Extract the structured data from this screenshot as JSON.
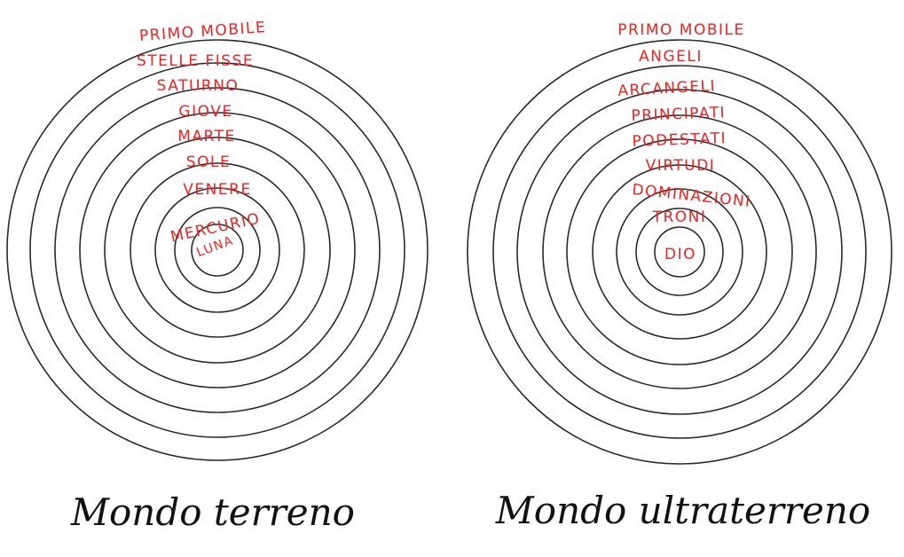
{
  "colors": {
    "ring_stroke": "#2a2a2a",
    "label_color": "#ee2222",
    "caption_color": "#111111"
  },
  "diagrams": [
    {
      "caption": "Mondo terreno",
      "labels": [
        "PRIMO MOBILE",
        "STELLE FISSE",
        "SATURNO",
        "GIOVE",
        "MARTE",
        "SOLE",
        "VENERE",
        "MERCURIO",
        "LUNA"
      ]
    },
    {
      "caption": "Mondo ultraterreno",
      "labels": [
        "PRIMO MOBILE",
        "ANGELI",
        "ARCANGELI",
        "PRINCIPATI",
        "PODESTATI",
        "VIRTUDI",
        "DOMINAZIONI",
        "TRONI",
        "DIO"
      ]
    }
  ]
}
